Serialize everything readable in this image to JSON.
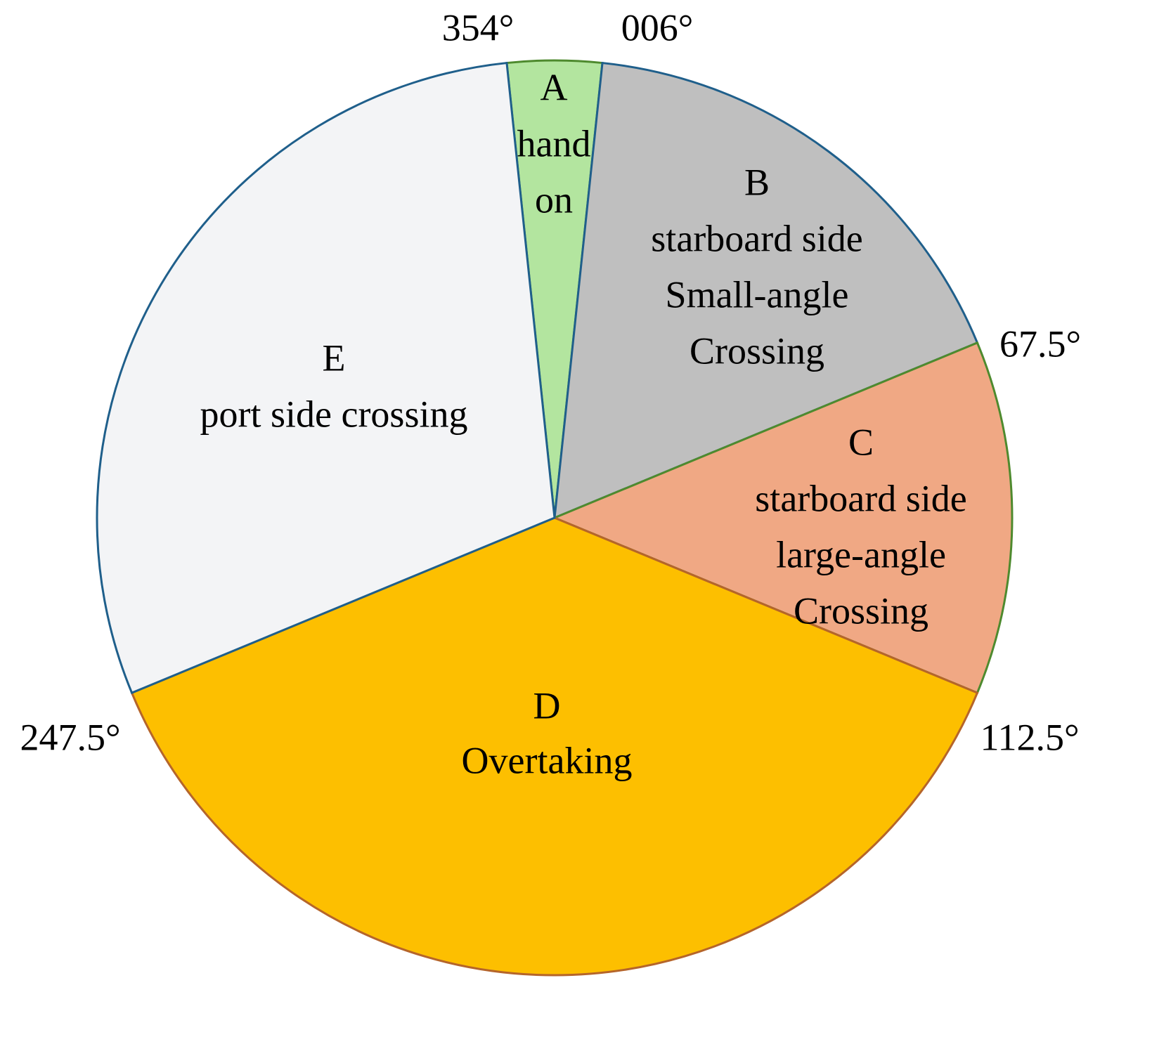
{
  "sectors": [
    {
      "name": "A",
      "lines": [
        "hand",
        "on"
      ],
      "color": "#b3e59f",
      "border": "#4e8a2e"
    },
    {
      "name": "B",
      "lines": [
        "starboard side",
        "Small-angle",
        "Crossing"
      ],
      "color": "#bfbfbf",
      "border": "#1f5f8b"
    },
    {
      "name": "C",
      "lines": [
        "starboard side",
        "large-angle",
        "Crossing"
      ],
      "color": "#f0a884",
      "border": "#4e8a2e"
    },
    {
      "name": "D",
      "lines": [
        "Overtaking"
      ],
      "color": "#fdbf00",
      "border": "#b5652a"
    },
    {
      "name": "E",
      "lines": [
        "port side crossing"
      ],
      "color": "#f3f4f6",
      "border": "#1f5f8b"
    }
  ],
  "boundaries": [
    {
      "value": 354,
      "label": "354°"
    },
    {
      "value": 6,
      "label": "006°"
    },
    {
      "value": 67.5,
      "label": "67.5°"
    },
    {
      "value": 112.5,
      "label": "112.5°"
    },
    {
      "value": 247.5,
      "label": "247.5°"
    }
  ]
}
